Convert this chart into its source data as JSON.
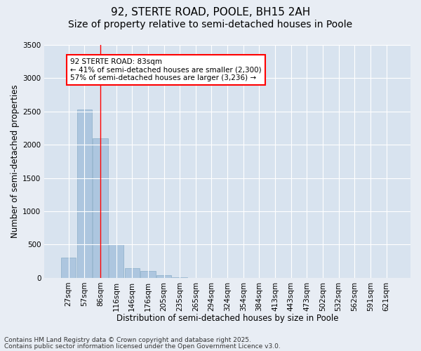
{
  "title": "92, STERTE ROAD, POOLE, BH15 2AH",
  "subtitle": "Size of property relative to semi-detached houses in Poole",
  "xlabel": "Distribution of semi-detached houses by size in Poole",
  "ylabel": "Number of semi-detached properties",
  "categories": [
    "27sqm",
    "57sqm",
    "86sqm",
    "116sqm",
    "146sqm",
    "176sqm",
    "205sqm",
    "235sqm",
    "265sqm",
    "294sqm",
    "324sqm",
    "354sqm",
    "384sqm",
    "413sqm",
    "443sqm",
    "473sqm",
    "502sqm",
    "532sqm",
    "562sqm",
    "591sqm",
    "621sqm"
  ],
  "values": [
    300,
    2530,
    2100,
    500,
    150,
    100,
    45,
    5,
    0,
    0,
    0,
    0,
    0,
    0,
    0,
    0,
    0,
    0,
    0,
    0,
    0
  ],
  "bar_color": "#adc6df",
  "bar_edge_color": "#8aaec8",
  "vline_x": 2,
  "vline_color": "red",
  "ylim": [
    0,
    3500
  ],
  "yticks": [
    0,
    500,
    1000,
    1500,
    2000,
    2500,
    3000,
    3500
  ],
  "annotation_text": "92 STERTE ROAD: 83sqm\n← 41% of semi-detached houses are smaller (2,300)\n57% of semi-detached houses are larger (3,236) →",
  "annotation_box_color": "white",
  "annotation_box_edgecolor": "red",
  "footer_line1": "Contains HM Land Registry data © Crown copyright and database right 2025.",
  "footer_line2": "Contains public sector information licensed under the Open Government Licence v3.0.",
  "background_color": "#e8edf4",
  "plot_bg_color": "#d8e3ef",
  "grid_color": "white",
  "title_fontsize": 11,
  "subtitle_fontsize": 10,
  "label_fontsize": 8.5,
  "tick_fontsize": 7.5,
  "footer_fontsize": 6.5,
  "annotation_fontsize": 7.5
}
